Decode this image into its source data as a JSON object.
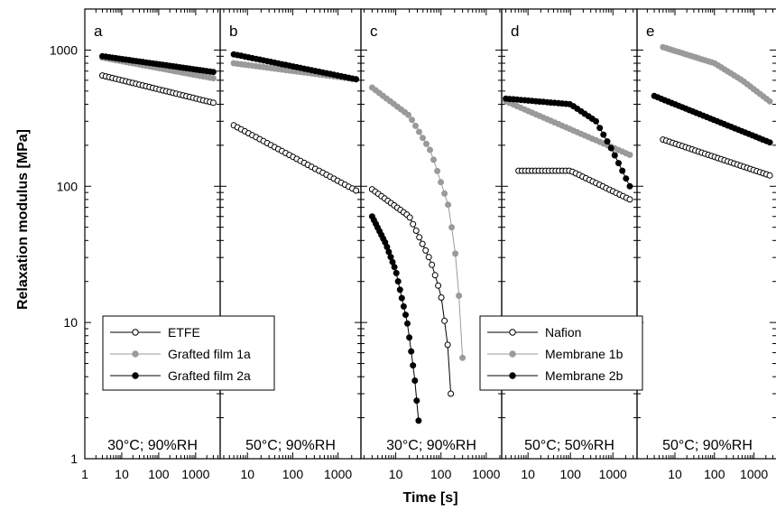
{
  "chart_data": {
    "type": "scatter",
    "xlabel": "Time [s]",
    "ylabel": "Relaxation modulus [MPa]",
    "xscale": "log",
    "yscale": "log",
    "ylim": [
      1,
      2000
    ],
    "y_ticks": [
      1,
      10,
      100,
      1000
    ],
    "y_tick_labels": [
      "1",
      "10",
      "100",
      "1000"
    ],
    "x_tick_labels_panel_a": [
      "1",
      "10",
      "100",
      "1000"
    ],
    "x_tick_labels_other": [
      "10",
      "100",
      "1000"
    ],
    "colors": {
      "open": "#ffffff",
      "gray": "#9a9a9a",
      "black": "#000000"
    },
    "legends": [
      {
        "panel": "a",
        "placement": "bottom",
        "entries": [
          {
            "label": "ETFE",
            "style": "open"
          },
          {
            "label": "Grafted film 1a",
            "style": "gray"
          },
          {
            "label": "Grafted film 2a",
            "style": "black"
          }
        ]
      },
      {
        "panel": "d",
        "placement": "bottom",
        "entries": [
          {
            "label": "Nafion",
            "style": "open"
          },
          {
            "label": "Membrane 1b",
            "style": "gray"
          },
          {
            "label": "Membrane 2b",
            "style": "black"
          }
        ]
      }
    ],
    "panels": [
      {
        "id": "a",
        "label": "a",
        "condition": "30°C; 90%RH",
        "xlim": [
          1,
          4600
        ],
        "series": [
          {
            "style": "open",
            "x": [
              3,
              3000
            ],
            "y": [
              650,
              410
            ]
          },
          {
            "style": "gray",
            "x": [
              3,
              3000
            ],
            "y": [
              880,
              620
            ]
          },
          {
            "style": "black",
            "x": [
              3,
              3000
            ],
            "y": [
              900,
              690
            ]
          }
        ]
      },
      {
        "id": "b",
        "label": "b",
        "condition": "50°C; 90%RH",
        "xlim": [
          2.5,
          3200
        ],
        "series": [
          {
            "style": "open",
            "x": [
              5,
              2500
            ],
            "y": [
              280,
              93
            ]
          },
          {
            "style": "gray",
            "x": [
              5,
              2500
            ],
            "y": [
              800,
              610
            ]
          },
          {
            "style": "black",
            "x": [
              5,
              2500
            ],
            "y": [
              930,
              610
            ]
          }
        ]
      },
      {
        "id": "c",
        "label": "c",
        "condition": "30°C; 90%RH",
        "xlim": [
          1.7,
          2200
        ],
        "series": [
          {
            "style": "open",
            "x": [
              3,
              20,
              60,
              100,
              140,
              165
            ],
            "y": [
              95,
              60,
              28,
              16,
              7,
              3
            ]
          },
          {
            "style": "gray",
            "x": [
              3,
              20,
              60,
              150,
              230,
              300
            ],
            "y": [
              530,
              330,
              180,
              70,
              25,
              5.5
            ]
          },
          {
            "style": "black",
            "x": [
              3,
              6,
              10,
              18,
              26,
              32
            ],
            "y": [
              60,
              38,
              24,
              10,
              4,
              1.9
            ]
          }
        ]
      },
      {
        "id": "d",
        "label": "d",
        "condition": "50°C; 50%RH",
        "xlim": [
          2.4,
          3700
        ],
        "series": [
          {
            "style": "open",
            "x": [
              6,
              100,
              2500
            ],
            "y": [
              130,
              130,
              80
            ]
          },
          {
            "style": "gray",
            "x": [
              3,
              2500
            ],
            "y": [
              420,
              170
            ]
          },
          {
            "style": "black",
            "x": [
              3,
              100,
              400,
              1000,
              2500
            ],
            "y": [
              440,
              400,
              300,
              180,
              100
            ]
          }
        ]
      },
      {
        "id": "e",
        "label": "e",
        "condition": "50°C; 90%RH",
        "xlim": [
          1.1,
          4000
        ],
        "series": [
          {
            "style": "open",
            "x": [
              5,
              2500
            ],
            "y": [
              220,
              120
            ]
          },
          {
            "style": "gray",
            "x": [
              5,
              100,
              500,
              2500
            ],
            "y": [
              1050,
              800,
              600,
              420
            ]
          },
          {
            "style": "black",
            "x": [
              3,
              2500
            ],
            "y": [
              460,
              210
            ]
          }
        ]
      }
    ]
  }
}
